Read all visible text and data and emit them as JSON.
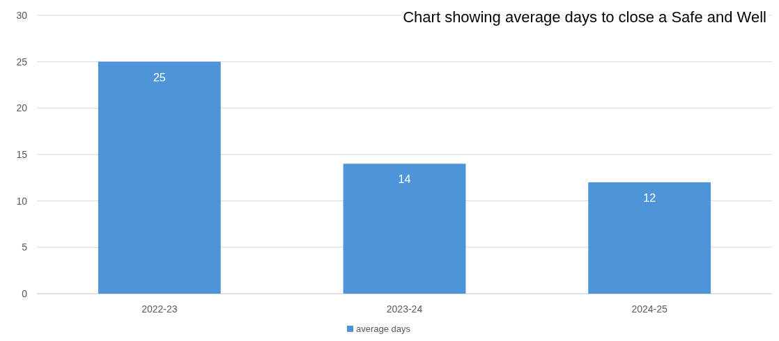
{
  "chart_data": {
    "type": "bar",
    "title": "Chart showing average days to close a Safe and Well",
    "categories": [
      "2022-23",
      "2023-24",
      "2024-25"
    ],
    "series": [
      {
        "name": "average days",
        "color": "#4e94d8",
        "values": [
          25,
          14,
          12
        ]
      }
    ],
    "ylim": [
      0,
      30
    ],
    "yticks": [
      0,
      5,
      10,
      15,
      20,
      25,
      30
    ],
    "grid": "y",
    "data_labels": true,
    "legend": "bottom"
  }
}
